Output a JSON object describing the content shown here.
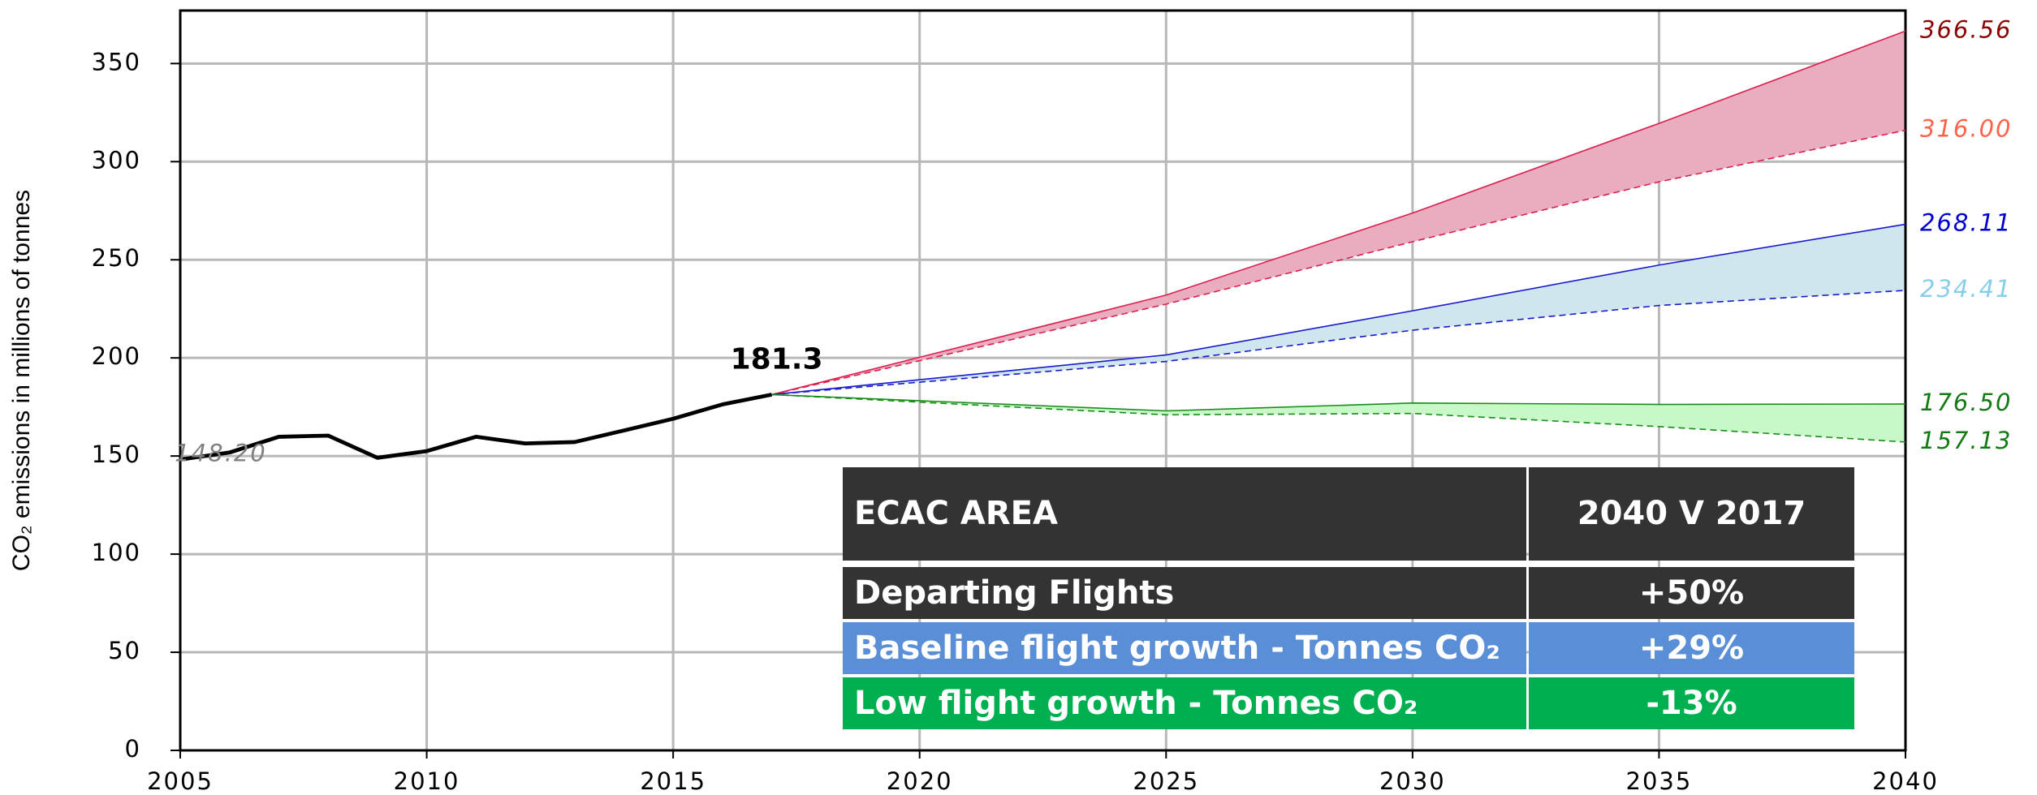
{
  "chart_data": {
    "type": "line",
    "ylabel": "CO₂ emissions in millions of tonnes",
    "xlim": [
      2005,
      2040
    ],
    "xticks": [
      2005,
      2010,
      2015,
      2020,
      2025,
      2030,
      2035,
      2040
    ],
    "ylim": [
      0,
      377
    ],
    "yticks": [
      0,
      50,
      100,
      150,
      200,
      250,
      300,
      350
    ],
    "grid": true,
    "series": [
      {
        "color": "#000000",
        "style": "solid",
        "width": 3,
        "label_color": "#000000",
        "x": [
          2005,
          2006,
          2007,
          2008,
          2009,
          2010,
          2011,
          2012,
          2013,
          2014,
          2015,
          2016,
          2017
        ],
        "values": [
          148.2,
          151.8,
          159.8,
          160.4,
          149.1,
          152.5,
          159.8,
          156.4,
          157.1,
          163,
          169,
          176.3,
          181.3
        ],
        "value_labels": [
          "148.20",
          null,
          null,
          null,
          null,
          null,
          null,
          null,
          null,
          null,
          null,
          null,
          "181.3"
        ]
      },
      {
        "color": "#d9204f",
        "style": "solid",
        "width": 1,
        "label_color": "#8b0000",
        "x": [
          2017,
          2025,
          2030,
          2035,
          2040
        ],
        "values": [
          181.3,
          232,
          273.8,
          319.5,
          366.56
        ],
        "value_labels": [
          null,
          null,
          null,
          null,
          "366.56"
        ]
      },
      {
        "color": "#d9204f",
        "style": "dashed",
        "width": 1,
        "label_color": "#ff6347",
        "x": [
          2017,
          2025,
          2030,
          2035,
          2040
        ],
        "values": [
          181.3,
          227.4,
          259.2,
          289.7,
          316
        ],
        "value_labels": [
          null,
          null,
          null,
          null,
          "316.00"
        ]
      },
      {
        "color": "#1a1acc",
        "style": "solid",
        "width": 1,
        "label_color": "#0000cd",
        "x": [
          2017,
          2025,
          2030,
          2035,
          2040
        ],
        "values": [
          181.3,
          201.5,
          224,
          247.3,
          268.11
        ],
        "value_labels": [
          null,
          null,
          null,
          null,
          "268.11"
        ]
      },
      {
        "color": "#1a1acc",
        "style": "dashed",
        "width": 1,
        "label_color": "#87ceeb",
        "x": [
          2017,
          2025,
          2030,
          2035,
          2040
        ],
        "values": [
          181.3,
          198.2,
          214.1,
          226.7,
          234.41
        ],
        "value_labels": [
          null,
          null,
          null,
          null,
          "234.41"
        ]
      },
      {
        "color": "#1a8c1a",
        "style": "solid",
        "width": 1,
        "label_color": "#137a13",
        "x": [
          2017,
          2025,
          2030,
          2035,
          2040
        ],
        "values": [
          181.3,
          173,
          177,
          176.3,
          176.5
        ],
        "value_labels": [
          null,
          null,
          null,
          null,
          "176.50"
        ]
      },
      {
        "color": "#1a8c1a",
        "style": "dashed",
        "width": 1,
        "label_color": "#137a13",
        "x": [
          2017,
          2025,
          2030,
          2035,
          2040
        ],
        "values": [
          181.3,
          171,
          171.7,
          165,
          157.13
        ],
        "value_labels": [
          null,
          null,
          null,
          null,
          "157.13"
        ]
      }
    ],
    "fills": [
      {
        "series": [
          1,
          2
        ],
        "color": "#e9adbf"
      },
      {
        "series": [
          3,
          4
        ],
        "color": "#d0e6ef"
      },
      {
        "series": [
          5,
          6
        ],
        "color": "#c8f8c8"
      }
    ],
    "table": {
      "header": [
        "ECAC AREA",
        "2040 V 2017"
      ],
      "rows": [
        {
          "cells": [
            "Departing Flights",
            "+50%"
          ],
          "color": "#333333"
        },
        {
          "cells": [
            "Baseline flight growth - Tonnes CO₂",
            "+29%"
          ],
          "color": "#5a8fd8"
        },
        {
          "cells": [
            "Low flight growth - Tonnes CO₂",
            "-13%"
          ],
          "color": "#00b050"
        }
      ]
    }
  }
}
